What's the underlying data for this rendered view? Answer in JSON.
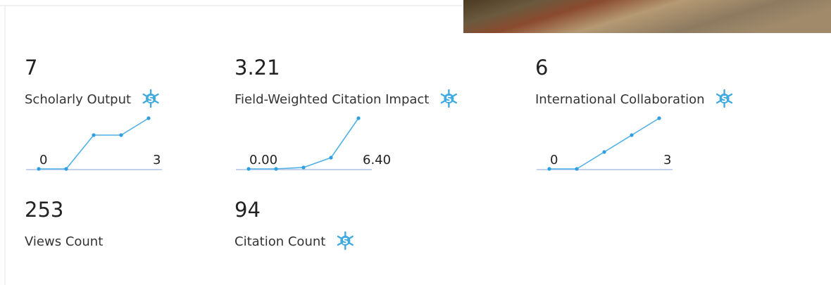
{
  "metrics": [
    {
      "value": 7,
      "label": "Scholarly Output",
      "icon": true,
      "sparkline": {
        "values": [
          0,
          0,
          2,
          2,
          3
        ],
        "yticks": [
          0,
          3
        ]
      }
    },
    {
      "value": 3.21,
      "label": "Field-Weighted Citation Impact",
      "icon": true,
      "sparkline": {
        "values": [
          0,
          0,
          0.18,
          1.42,
          6.4
        ],
        "yticks": [
          {
            "value": 0,
            "label": "0.00"
          },
          {
            "value": 6.4,
            "label": "6.40"
          }
        ]
      }
    },
    {
      "value": 6,
      "label": "International Collaboration",
      "icon": true,
      "sparkline": {
        "values": [
          0,
          0,
          1,
          2,
          3
        ],
        "yticks": [
          0,
          3
        ]
      }
    },
    {
      "value": 253,
      "label": "Views Count",
      "icon": false
    },
    {
      "value": 94,
      "label": "Citation Count",
      "icon": true
    }
  ]
}
